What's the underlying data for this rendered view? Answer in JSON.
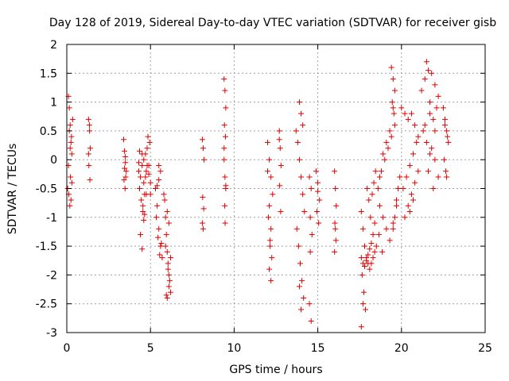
{
  "chart_data": {
    "type": "scatter",
    "title": "Day 128 of 2019, Sidereal Day-to-day VTEC variation (SDTVAR) for receiver gisb",
    "xlabel": "GPS time / hours",
    "ylabel": "SDTVAR / TECUs",
    "xlim": [
      0,
      25
    ],
    "ylim": [
      -3,
      2
    ],
    "xticks": [
      0,
      5,
      10,
      15,
      20,
      25
    ],
    "yticks": [
      -3,
      -2.5,
      -2,
      -1.5,
      -1,
      -0.5,
      0,
      0.5,
      1,
      1.5,
      2
    ],
    "xtick_labels": [
      "0",
      "5",
      "10",
      "15",
      "20",
      "25"
    ],
    "ytick_labels": [
      "-3",
      "-2.5",
      "-2",
      "-1.5",
      "-1",
      "-0.5",
      "0",
      "0.5",
      "1",
      "1.5",
      "2"
    ],
    "grid": true,
    "marker": "+",
    "color": "#e00000",
    "series": [
      {
        "x": [
          0.1,
          0.15,
          0.2,
          0.25,
          0.3,
          0.05,
          0.12,
          0.18,
          0.22,
          0.28,
          0.35,
          0.1,
          0.2,
          0.3,
          0.15,
          0.25,
          1.3,
          1.35,
          1.4,
          1.32,
          1.38,
          1.3,
          1.36,
          3.4,
          3.45,
          3.5,
          3.55,
          3.42,
          3.48,
          3.52,
          3.5,
          3.45,
          4.3,
          4.4,
          4.5,
          4.6,
          4.7,
          4.8,
          4.9,
          5.0,
          4.35,
          4.45,
          4.55,
          4.65,
          4.75,
          4.85,
          4.95,
          4.5,
          4.6,
          4.7,
          4.8,
          4.4,
          4.5,
          4.6,
          4.55,
          4.65,
          4.75,
          4.3,
          4.35,
          4.9,
          5.0,
          5.3,
          5.4,
          5.5,
          5.6,
          5.7,
          5.35,
          5.45,
          5.55,
          5.65,
          5.5,
          5.6,
          5.4,
          5.5,
          5.8,
          5.9,
          6.0,
          6.1,
          6.2,
          5.85,
          5.95,
          6.05,
          6.15,
          6.0,
          6.1,
          5.9,
          6.0,
          6.1,
          6.2,
          5.95,
          6.05,
          8.1,
          8.15,
          8.2,
          8.12,
          8.18,
          8.1,
          8.15,
          9.4,
          9.45,
          9.5,
          9.42,
          9.48,
          9.4,
          9.45,
          9.5,
          9.44,
          9.46,
          9.4,
          9.5,
          12.0,
          12.1,
          12.2,
          12.3,
          12.05,
          12.15,
          12.25,
          12.1,
          12.2,
          12.0,
          12.1,
          12.2,
          12.15,
          12.7,
          12.75,
          12.8,
          12.72,
          12.78,
          12.7,
          13.7,
          13.8,
          13.9,
          14.0,
          14.1,
          14.2,
          13.75,
          13.85,
          13.95,
          14.05,
          14.15,
          13.9,
          14.0,
          14.1,
          14.0,
          13.9,
          14.5,
          14.6,
          14.55,
          14.65,
          14.5,
          14.6,
          14.55,
          14.9,
          15.0,
          15.1,
          14.95,
          15.05,
          15.0,
          16.0,
          16.05,
          16.1,
          16.02,
          16.08,
          16.0,
          16.05,
          17.6,
          17.7,
          17.8,
          17.9,
          18.0,
          18.1,
          18.2,
          18.3,
          18.4,
          18.5,
          17.65,
          17.75,
          17.85,
          17.95,
          18.05,
          18.15,
          18.25,
          18.35,
          18.45,
          17.6,
          17.7,
          17.8,
          17.9,
          18.0,
          18.1,
          18.2,
          18.3,
          18.4,
          17.6,
          17.7,
          18.6,
          18.8,
          19.0,
          19.2,
          19.4,
          19.6,
          18.7,
          18.9,
          19.1,
          19.3,
          19.5,
          18.7,
          18.9,
          19.1,
          19.3,
          19.5,
          19.7,
          19.8,
          19.9,
          18.65,
          18.85,
          19.4,
          19.5,
          19.6,
          19.45,
          19.55,
          19.5,
          19.6,
          19.7,
          20.0,
          20.2,
          20.4,
          20.6,
          20.8,
          21.0,
          20.1,
          20.3,
          20.5,
          20.7,
          20.9,
          20.2,
          20.4,
          20.6,
          20.8,
          21.0,
          20.5,
          20.7,
          21.2,
          21.4,
          21.6,
          21.8,
          22.0,
          22.2,
          21.3,
          21.5,
          21.7,
          21.9,
          22.1,
          21.5,
          21.7,
          21.9,
          21.6,
          21.8,
          22.0,
          21.4,
          21.7,
          22.0,
          22.2,
          22.5,
          22.6,
          22.7,
          22.8,
          22.55,
          22.65,
          22.75,
          22.6,
          22.7
        ],
        "y": [
          1.1,
          0.9,
          0.6,
          0.3,
          0.1,
          -0.5,
          -0.6,
          -0.8,
          -0.3,
          0.4,
          0.7,
          -0.1,
          0.2,
          -0.4,
          0.5,
          -0.7,
          0.7,
          0.6,
          0.2,
          -0.1,
          -0.35,
          0.1,
          0.5,
          0.35,
          0.15,
          -0.05,
          -0.2,
          -0.35,
          -0.5,
          -0.3,
          0.05,
          -0.15,
          -0.2,
          -0.3,
          -0.1,
          0.0,
          0.1,
          0.2,
          -0.1,
          -0.4,
          -0.5,
          -0.7,
          -0.9,
          -0.6,
          -0.2,
          0.4,
          0.3,
          0.1,
          -0.4,
          -0.3,
          -0.1,
          -1.3,
          -1.55,
          -1.05,
          -0.8,
          -0.95,
          -0.6,
          -0.05,
          0.15,
          -0.25,
          -0.6,
          -0.5,
          -0.8,
          -1.2,
          -1.5,
          -1.7,
          -1.0,
          -1.35,
          -1.65,
          -1.45,
          -0.1,
          -0.2,
          -0.45,
          -0.35,
          -0.6,
          -1.0,
          -1.6,
          -2.0,
          -2.3,
          -0.7,
          -1.3,
          -1.8,
          -2.1,
          -2.4,
          -2.2,
          -1.5,
          -0.9,
          -1.1,
          -1.7,
          -2.35,
          -1.9,
          0.35,
          0.2,
          0.0,
          -0.65,
          -0.85,
          -1.1,
          -1.2,
          1.4,
          1.2,
          0.9,
          0.6,
          0.4,
          0.0,
          -0.3,
          -0.5,
          -0.8,
          -1.1,
          0.2,
          -0.45,
          0.3,
          0.0,
          -0.3,
          -0.6,
          -1.0,
          -1.4,
          -1.7,
          -1.9,
          -2.1,
          -0.2,
          -0.8,
          -1.2,
          -1.5,
          0.5,
          0.2,
          -0.1,
          -0.45,
          -0.9,
          0.35,
          0.5,
          0.3,
          0.0,
          -0.3,
          -0.6,
          -0.9,
          -1.2,
          -1.5,
          -1.8,
          -2.1,
          -2.4,
          1.0,
          0.8,
          0.6,
          -2.6,
          -2.2,
          -0.3,
          -0.5,
          -1.0,
          -1.3,
          -2.5,
          -2.8,
          -1.6,
          -0.2,
          -0.4,
          -0.7,
          -0.9,
          -1.1,
          -0.55,
          -0.2,
          -0.5,
          -0.8,
          -1.1,
          -1.4,
          -1.6,
          -1.2,
          -0.9,
          -1.2,
          -1.5,
          -1.7,
          -1.8,
          -1.9,
          -1.8,
          -1.7,
          -1.6,
          -1.5,
          -2.0,
          -2.3,
          -2.6,
          -0.5,
          -0.7,
          -1.0,
          -0.6,
          -0.4,
          -0.2,
          -1.7,
          -1.8,
          -1.85,
          -1.75,
          -1.65,
          -1.55,
          -1.45,
          -1.3,
          -1.1,
          -2.9,
          -2.5,
          -0.5,
          -0.2,
          0.0,
          0.2,
          0.4,
          0.6,
          -0.8,
          -1.0,
          -1.2,
          -1.4,
          -1.1,
          -0.3,
          0.1,
          0.3,
          0.5,
          0.9,
          -0.7,
          -0.5,
          -0.3,
          -1.3,
          -1.6,
          1.6,
          1.4,
          1.2,
          1.0,
          0.8,
          -1.2,
          -1.0,
          -0.8,
          0.9,
          0.8,
          0.7,
          0.8,
          0.6,
          0.4,
          -0.5,
          -0.3,
          -0.1,
          0.1,
          0.3,
          -1.0,
          -0.8,
          -0.6,
          -0.4,
          -0.2,
          -0.9,
          -0.7,
          1.2,
          1.4,
          1.55,
          1.5,
          1.3,
          1.1,
          0.5,
          0.3,
          0.1,
          0.7,
          0.9,
          1.7,
          1.0,
          -0.5,
          -0.2,
          0.2,
          0.5,
          0.6,
          0.8,
          0.0,
          -0.3,
          0.9,
          0.7,
          0.5,
          0.3,
          0.0,
          -0.2,
          0.4,
          0.6,
          -0.3
        ]
      }
    ]
  }
}
